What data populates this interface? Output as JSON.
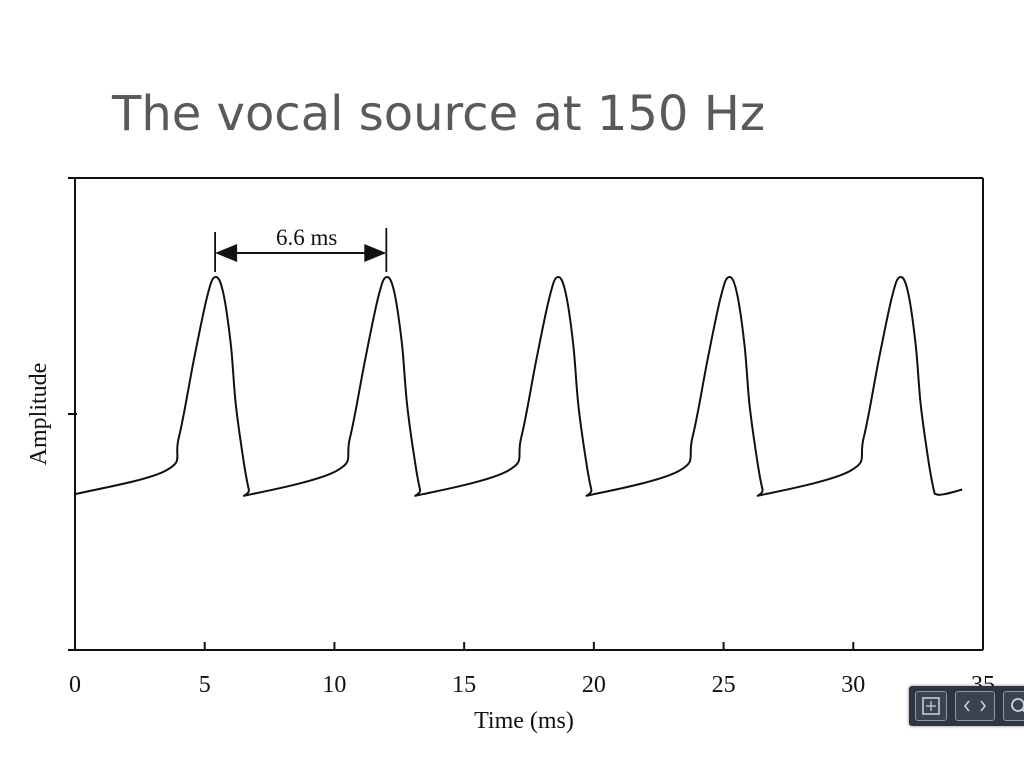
{
  "slide": {
    "title": "The vocal source at 150 Hz"
  },
  "chart_data": {
    "type": "line",
    "title": "",
    "xlabel": "Time (ms)",
    "ylabel": "Amplitude",
    "xlim": [
      0,
      35
    ],
    "x_ticks": [
      0,
      5,
      10,
      15,
      20,
      25,
      30,
      35
    ],
    "y_ticks": [
      0,
      0.5,
      1.0
    ],
    "ylim": [
      0,
      1
    ],
    "grid": false,
    "period_ms": 6.6,
    "first_peak_ms": 5.4,
    "annotation": {
      "text": "6.6 ms",
      "from_ms": 5.4,
      "to_ms": 12.0
    },
    "series": [
      {
        "x": [
          0.0,
          3.5,
          4.0,
          4.6,
          5.1,
          5.4,
          5.7,
          6.0,
          6.2,
          6.5,
          6.7,
          6.8,
          10.1,
          10.6,
          11.2,
          11.7,
          12.0,
          12.3,
          12.6,
          12.8,
          13.1,
          13.3,
          13.4,
          16.7,
          17.2,
          17.8,
          18.3,
          18.6,
          18.9,
          19.2,
          19.4,
          19.7,
          19.9,
          20.0,
          23.3,
          23.8,
          24.4,
          24.9,
          25.2,
          25.5,
          25.8,
          26.0,
          26.3,
          26.5,
          26.6,
          29.9,
          30.4,
          31.0,
          31.5,
          31.8,
          32.1,
          32.4,
          32.6,
          32.9,
          33.1,
          33.2,
          33.5,
          34.2
        ],
        "y": [
          0.33,
          0.38,
          0.45,
          0.62,
          0.75,
          0.79,
          0.76,
          0.65,
          0.52,
          0.4,
          0.34,
          0.33,
          0.38,
          0.45,
          0.62,
          0.75,
          0.79,
          0.76,
          0.65,
          0.52,
          0.4,
          0.34,
          0.33,
          0.38,
          0.45,
          0.62,
          0.75,
          0.79,
          0.76,
          0.65,
          0.52,
          0.4,
          0.34,
          0.33,
          0.38,
          0.45,
          0.62,
          0.75,
          0.79,
          0.76,
          0.65,
          0.52,
          0.4,
          0.34,
          0.33,
          0.38,
          0.45,
          0.62,
          0.75,
          0.79,
          0.76,
          0.65,
          0.52,
          0.4,
          0.34,
          0.33,
          0.33,
          0.34
        ]
      }
    ]
  },
  "toolbar": {
    "buttons": [
      {
        "icon": "fullscreen-icon"
      },
      {
        "icon": "prev-next-icon"
      },
      {
        "icon": "zoom-icon"
      }
    ]
  }
}
